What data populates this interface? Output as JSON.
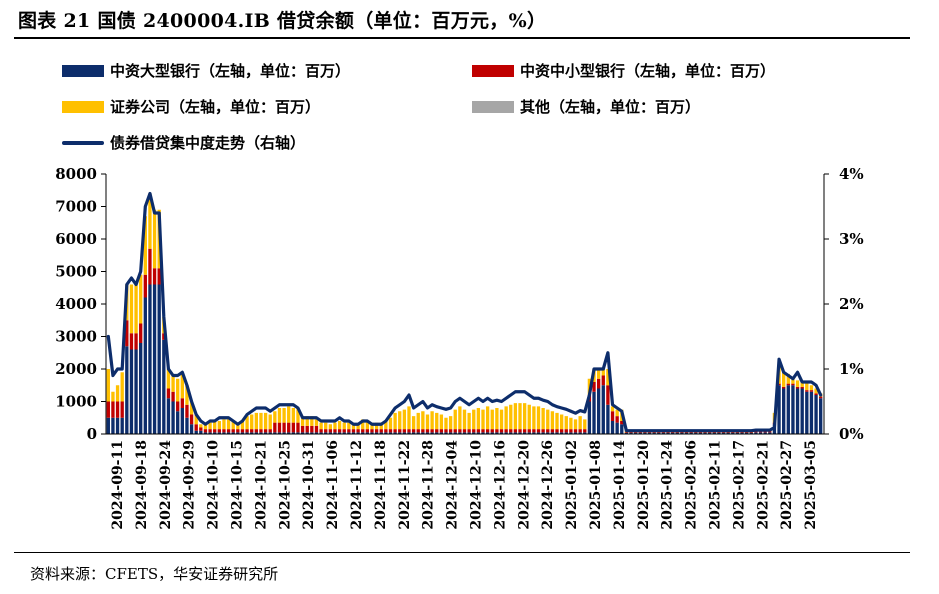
{
  "title": "图表 21  国债 2400004.IB 借贷余额（单位：百万元，%）",
  "source": "资料来源：CFETS，华安证券研究所",
  "colors": {
    "large_bank": "#0d2d6b",
    "small_bank": "#c00000",
    "securities": "#ffc000",
    "other": "#a6a6a6",
    "concentration": "#0d2d6b"
  },
  "legend": {
    "large_bank": "中资大型银行（左轴，单位：百万）",
    "small_bank": "中资中小型银行（左轴，单位：百万）",
    "securities": "证券公司（左轴，单位：百万）",
    "other": "其他（左轴，单位：百万）",
    "concentration": "债券借贷集中度走势（右轴）"
  },
  "chart_data": {
    "type": "bar",
    "stacked": true,
    "title": "",
    "y_left_ticks": [
      "0",
      "1000",
      "2000",
      "3000",
      "4000",
      "5000",
      "6000",
      "7000",
      "8000"
    ],
    "y_right_ticks": [
      "0%",
      "1%",
      "2%",
      "3%",
      "4%"
    ],
    "ylim_left": [
      0,
      8000
    ],
    "ylim_right": [
      0,
      4
    ],
    "x_tick_labels": [
      "2024-09-11",
      "2024-09-18",
      "2024-09-24",
      "2024-09-29",
      "2024-10-10",
      "2024-10-15",
      "2024-10-21",
      "2024-10-25",
      "2024-10-31",
      "2024-11-06",
      "2024-11-12",
      "2024-11-18",
      "2024-11-22",
      "2024-11-28",
      "2024-12-04",
      "2024-12-10",
      "2024-12-16",
      "2024-12-20",
      "2024-12-26",
      "2025-01-02",
      "2025-01-08",
      "2025-01-14",
      "2025-01-20",
      "2025-01-24",
      "2025-02-06",
      "2025-02-11",
      "2025-02-17",
      "2025-02-21",
      "2025-02-27",
      "2025-03-05"
    ],
    "series": [
      {
        "name": "中资大型银行（左轴，单位：百万）",
        "axis": "left",
        "values": [
          500,
          500,
          500,
          500,
          2700,
          2600,
          2600,
          2800,
          4200,
          4600,
          4600,
          4600,
          2900,
          1100,
          1000,
          700,
          800,
          500,
          300,
          100,
          100,
          50,
          50,
          50,
          50,
          50,
          50,
          50,
          50,
          50,
          50,
          50,
          50,
          50,
          50,
          50,
          50,
          50,
          50,
          50,
          50,
          50,
          50,
          50,
          50,
          50,
          50,
          50,
          50,
          50,
          50,
          50,
          50,
          50,
          50,
          50,
          50,
          50,
          50,
          50,
          50,
          50,
          50,
          50,
          50,
          50,
          50,
          50,
          50,
          50,
          50,
          50,
          50,
          50,
          50,
          50,
          50,
          50,
          50,
          50,
          50,
          50,
          50,
          50,
          50,
          50,
          50,
          50,
          50,
          50,
          50,
          50,
          50,
          50,
          50,
          50,
          50,
          50,
          50,
          50,
          50,
          50,
          50,
          50,
          1000,
          1300,
          1400,
          1500,
          900,
          400,
          350,
          300,
          30,
          30,
          30,
          30,
          30,
          30,
          30,
          30,
          30,
          30,
          30,
          30,
          30,
          30,
          30,
          30,
          30,
          30,
          30,
          30,
          30,
          30,
          30,
          30,
          30,
          30,
          30,
          30,
          50,
          50,
          50,
          50,
          300,
          1500,
          1400,
          1500,
          1500,
          1400,
          1400,
          1300,
          1300,
          1200,
          1100
        ]
      },
      {
        "name": "中资中小型银行（左轴，单位：百万）",
        "axis": "left",
        "values": [
          500,
          500,
          500,
          500,
          800,
          500,
          500,
          600,
          700,
          1100,
          500,
          500,
          200,
          300,
          300,
          300,
          300,
          400,
          300,
          200,
          100,
          100,
          100,
          100,
          100,
          100,
          100,
          100,
          100,
          100,
          100,
          100,
          100,
          100,
          100,
          100,
          300,
          300,
          300,
          300,
          300,
          300,
          200,
          200,
          200,
          200,
          100,
          100,
          100,
          100,
          100,
          100,
          100,
          100,
          100,
          100,
          100,
          100,
          100,
          100,
          100,
          100,
          100,
          100,
          100,
          100,
          100,
          100,
          100,
          100,
          100,
          100,
          100,
          100,
          100,
          100,
          100,
          100,
          100,
          100,
          100,
          100,
          100,
          100,
          100,
          100,
          100,
          100,
          100,
          100,
          100,
          100,
          100,
          100,
          100,
          100,
          100,
          100,
          100,
          100,
          100,
          100,
          100,
          100,
          200,
          300,
          300,
          300,
          600,
          300,
          200,
          100,
          20,
          20,
          20,
          20,
          20,
          20,
          20,
          20,
          20,
          20,
          20,
          20,
          20,
          20,
          20,
          20,
          20,
          20,
          20,
          20,
          20,
          20,
          20,
          20,
          20,
          20,
          20,
          20,
          30,
          30,
          30,
          30,
          50,
          50,
          50,
          50,
          50,
          50,
          50,
          50,
          50,
          50,
          50
        ]
      },
      {
        "name": "证券公司（左轴，单位：百万）",
        "axis": "left",
        "values": [
          1000,
          300,
          500,
          900,
          1100,
          1500,
          1600,
          1500,
          1800,
          1700,
          1800,
          1800,
          500,
          600,
          500,
          700,
          800,
          600,
          400,
          300,
          100,
          150,
          200,
          250,
          250,
          300,
          300,
          250,
          200,
          250,
          400,
          450,
          500,
          500,
          500,
          450,
          350,
          450,
          450,
          500,
          450,
          450,
          300,
          300,
          300,
          200,
          200,
          200,
          150,
          200,
          250,
          200,
          200,
          150,
          150,
          300,
          250,
          200,
          200,
          200,
          250,
          350,
          500,
          550,
          600,
          700,
          400,
          500,
          550,
          450,
          550,
          500,
          450,
          350,
          400,
          600,
          700,
          600,
          500,
          600,
          650,
          600,
          700,
          600,
          650,
          600,
          700,
          750,
          800,
          800,
          800,
          750,
          700,
          700,
          650,
          600,
          550,
          500,
          450,
          400,
          350,
          300,
          400,
          300,
          500,
          400,
          300,
          200,
          500,
          150,
          200,
          350,
          50,
          50,
          50,
          50,
          50,
          50,
          50,
          50,
          50,
          50,
          50,
          50,
          50,
          50,
          50,
          50,
          50,
          50,
          50,
          50,
          50,
          50,
          50,
          50,
          50,
          50,
          50,
          50,
          50,
          50,
          50,
          50,
          300,
          550,
          450,
          300,
          150,
          200,
          150,
          250,
          150,
          150,
          100
        ]
      },
      {
        "name": "其他（左轴，单位：百万）",
        "axis": "left",
        "values": [
          0,
          0,
          0,
          0,
          0,
          0,
          0,
          0,
          0,
          0,
          0,
          0,
          0,
          0,
          0,
          0,
          0,
          0,
          0,
          0,
          0,
          0,
          0,
          0,
          0,
          0,
          0,
          0,
          0,
          0,
          0,
          0,
          0,
          0,
          0,
          0,
          0,
          0,
          0,
          0,
          0,
          0,
          0,
          0,
          0,
          0,
          0,
          0,
          0,
          0,
          0,
          0,
          0,
          0,
          0,
          0,
          0,
          0,
          0,
          0,
          0,
          0,
          0,
          0,
          0,
          0,
          0,
          0,
          0,
          0,
          0,
          0,
          0,
          0,
          0,
          0,
          0,
          0,
          0,
          0,
          0,
          0,
          0,
          0,
          0,
          0,
          0,
          0,
          0,
          0,
          0,
          0,
          0,
          0,
          0,
          0,
          0,
          0,
          0,
          0,
          0,
          0,
          0,
          0,
          0,
          0,
          0,
          0,
          0,
          0,
          0,
          0,
          0,
          0,
          0,
          0,
          0,
          0,
          0,
          0,
          0,
          0,
          0,
          0,
          0,
          0,
          0,
          0,
          0,
          0,
          0,
          0,
          0,
          0,
          0,
          0,
          0,
          0,
          0,
          0,
          0,
          0,
          0,
          0,
          0,
          0,
          0,
          0,
          0,
          0,
          0,
          0,
          0,
          0,
          0
        ]
      },
      {
        "name": "债券借贷集中度走势（右轴）",
        "axis": "right",
        "type": "line",
        "values_pct": [
          1.5,
          0.9,
          1.0,
          1.0,
          2.3,
          2.4,
          2.3,
          2.5,
          3.5,
          3.7,
          3.4,
          3.4,
          1.8,
          1.0,
          0.9,
          0.9,
          0.95,
          0.75,
          0.5,
          0.3,
          0.2,
          0.15,
          0.2,
          0.2,
          0.25,
          0.25,
          0.25,
          0.2,
          0.15,
          0.2,
          0.3,
          0.35,
          0.4,
          0.4,
          0.4,
          0.35,
          0.4,
          0.45,
          0.45,
          0.45,
          0.45,
          0.4,
          0.25,
          0.25,
          0.25,
          0.25,
          0.2,
          0.2,
          0.2,
          0.2,
          0.25,
          0.2,
          0.2,
          0.15,
          0.15,
          0.2,
          0.2,
          0.15,
          0.15,
          0.15,
          0.2,
          0.3,
          0.4,
          0.45,
          0.5,
          0.6,
          0.4,
          0.45,
          0.5,
          0.4,
          0.45,
          0.42,
          0.4,
          0.38,
          0.4,
          0.5,
          0.55,
          0.5,
          0.45,
          0.5,
          0.55,
          0.5,
          0.55,
          0.5,
          0.52,
          0.5,
          0.55,
          0.6,
          0.65,
          0.65,
          0.65,
          0.6,
          0.55,
          0.55,
          0.52,
          0.5,
          0.45,
          0.42,
          0.4,
          0.38,
          0.35,
          0.32,
          0.36,
          0.34,
          0.6,
          1.0,
          1.0,
          1.0,
          1.25,
          0.45,
          0.4,
          0.35,
          0.05,
          0.05,
          0.05,
          0.05,
          0.05,
          0.05,
          0.05,
          0.05,
          0.05,
          0.05,
          0.05,
          0.05,
          0.05,
          0.05,
          0.05,
          0.05,
          0.05,
          0.05,
          0.05,
          0.05,
          0.05,
          0.05,
          0.05,
          0.05,
          0.05,
          0.05,
          0.05,
          0.05,
          0.06,
          0.06,
          0.06,
          0.06,
          0.1,
          1.15,
          0.95,
          0.9,
          0.85,
          0.95,
          0.8,
          0.8,
          0.8,
          0.75,
          0.6
        ]
      }
    ]
  }
}
